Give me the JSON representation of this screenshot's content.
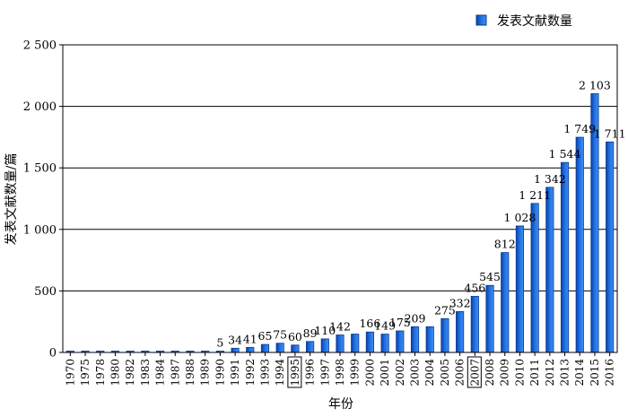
{
  "chart_data": {
    "type": "bar",
    "xlabel": "年份",
    "ylabel": "发表文献数量/篇",
    "ylim": [
      0,
      2500
    ],
    "yticks": [
      0,
      500,
      1000,
      1500,
      2000,
      2500
    ],
    "ytick_labels": [
      "0",
      "500",
      "1 000",
      "1 500",
      "2 000",
      "2 500"
    ],
    "grid": true,
    "legend_position": "top-right",
    "boxed_categories": [
      "1995",
      "2007"
    ],
    "categories": [
      "1970",
      "1975",
      "1978",
      "1980",
      "1982",
      "1983",
      "1984",
      "1987",
      "1988",
      "1989",
      "1990",
      "1991",
      "1992",
      "1993",
      "1994",
      "1995",
      "1996",
      "1997",
      "1998",
      "1999",
      "2000",
      "2001",
      "2002",
      "2003",
      "2004",
      "2005",
      "2006",
      "2007",
      "2008",
      "2009",
      "2010",
      "2011",
      "2012",
      "2013",
      "2014",
      "2015",
      "2016"
    ],
    "series": [
      {
        "name": "发表文献数量",
        "color": "#1f6fe0",
        "values": [
          1,
          1,
          1,
          1,
          1,
          1,
          1,
          1,
          1,
          1,
          5,
          34,
          41,
          65,
          75,
          60,
          89,
          110,
          142,
          149,
          166,
          149,
          175,
          209,
          209,
          275,
          332,
          456,
          545,
          812,
          1028,
          1211,
          1342,
          1544,
          1749,
          2103,
          1711
        ],
        "labels": [
          "",
          "",
          "",
          "",
          "",
          "",
          "",
          "",
          "",
          "",
          "5",
          "34",
          "41",
          "65",
          "75",
          "60",
          "89",
          "110",
          "142",
          "",
          "166",
          "149",
          "175",
          "209",
          "",
          "275",
          "332",
          "456",
          "545",
          "812",
          "1 028",
          "1 211",
          "1 342",
          "1 544",
          "1 749",
          "2 103",
          "1 711"
        ]
      }
    ]
  }
}
